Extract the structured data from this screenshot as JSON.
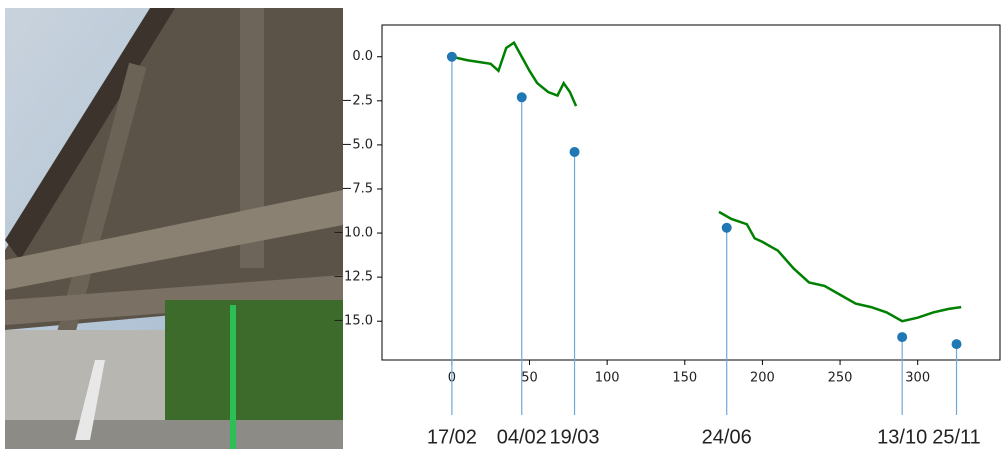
{
  "chart_data": {
    "type": "line",
    "xlim": [
      -45,
      353
    ],
    "ylim": [
      1.8,
      -17.2
    ],
    "xticks": [
      0,
      50,
      100,
      150,
      200,
      250,
      300
    ],
    "yticks": [
      {
        "value": 0,
        "label": "0.0"
      },
      {
        "value": -2.5,
        "label": "−2.5"
      },
      {
        "value": -5,
        "label": "−5.0"
      },
      {
        "value": -7.5,
        "label": "−7.5"
      },
      {
        "value": -10,
        "label": "−10.0"
      },
      {
        "value": -12.5,
        "label": "−12.5"
      },
      {
        "value": -15,
        "label": "−15.0"
      }
    ],
    "series": [
      {
        "type": "line",
        "color": "#008000",
        "x": [
          0,
          10,
          25,
          30,
          35,
          40,
          45,
          50,
          55,
          62,
          68,
          72,
          76,
          80,
          120,
          172,
          180,
          190,
          195,
          200,
          210,
          220,
          230,
          240,
          250,
          260,
          270,
          280,
          290,
          300,
          310,
          320,
          328
        ],
        "values": [
          0,
          -0.2,
          -0.4,
          -0.8,
          0.5,
          0.8,
          0,
          -0.8,
          -1.5,
          -2,
          -2.2,
          -1.5,
          -2,
          -2.8,
          null,
          -8.8,
          -9.2,
          -9.5,
          -10.3,
          -10.5,
          -11,
          -12,
          -12.8,
          -13,
          -13.5,
          -14,
          -14.2,
          -14.5,
          -15,
          -14.8,
          -14.5,
          -14.3,
          -14.2
        ]
      },
      {
        "type": "scatter",
        "color": "#1f77b4",
        "x": [
          0,
          45,
          79,
          177,
          290,
          325
        ],
        "values": [
          0,
          -2.3,
          -5.4,
          -9.7,
          -15.9,
          -16.3
        ],
        "labels": [
          "17/02",
          "04/02",
          "19/03",
          "24/06",
          "13/10",
          "25/11"
        ]
      }
    ]
  }
}
